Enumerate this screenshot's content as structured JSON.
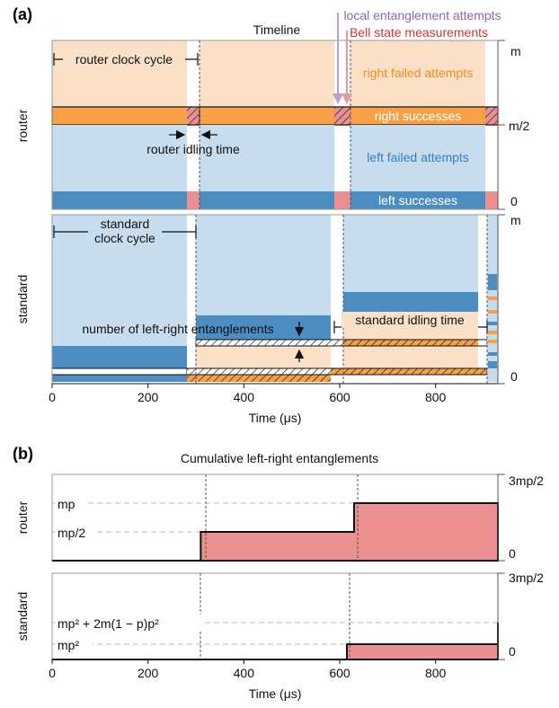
{
  "colors": {
    "peach": "#FBE0C8",
    "orange": "#F7A045",
    "lightblue": "#C7DCEC",
    "blue": "#4C8DC2",
    "pink": "#EA9091",
    "purple": "#8E64B2",
    "red": "#D6333C",
    "label_orange": "#F38B1E",
    "label_blue": "#3A7EBB"
  },
  "panel_a": {
    "tag": "(a)",
    "title": "Timeline",
    "row_router": "router",
    "row_standard": "standard",
    "arrow_local": "local entanglement attempts",
    "arrow_bell": "Bell state measurements",
    "router_clock": "router clock cycle",
    "router_idle": "router idling time",
    "right_failed": "right failed attempts",
    "right_successes": "right successes",
    "left_failed": "left failed attempts",
    "left_successes": "left successes",
    "standard_clock_1": "standard",
    "standard_clock_2": "clock cycle",
    "num_lr": "number of left-right entanglements",
    "standard_idle": "standard idling time",
    "router_axis": [
      "m",
      "m/2",
      "0"
    ],
    "standard_axis": [
      "m",
      "0"
    ],
    "x_ticks": [
      "0",
      "200",
      "400",
      "600",
      "800"
    ],
    "x_label": "Time (μs)"
  },
  "panel_b": {
    "tag": "(b)",
    "title": "Cumulative left-right entanglements",
    "row_router": "router",
    "row_standard": "standard",
    "router_axis_top": "3mp/2",
    "router_axis_zero": "0",
    "standard_axis_top": "3mp/2",
    "standard_axis_zero": "0",
    "router_levels": [
      "mp",
      "mp/2"
    ],
    "standard_levels": [
      "mp² + 2m(1 − p)p²",
      "mp²"
    ],
    "x_ticks": [
      "0",
      "200",
      "400",
      "600",
      "800"
    ],
    "x_label": "Time (μs)"
  },
  "chart_data": {
    "type": "area",
    "title": "Cumulative left-right entanglements",
    "xlabel": "Time (μs)",
    "xlim": [
      0,
      930
    ],
    "series": [
      {
        "name": "router",
        "x": [
          0,
          310,
          310,
          630,
          630,
          930
        ],
        "y_label": [
          "0",
          "0",
          "mp/2",
          "mp/2",
          "mp",
          "mp"
        ]
      },
      {
        "name": "standard",
        "x": [
          0,
          615,
          615,
          930,
          930
        ],
        "y_label": [
          "0",
          "0",
          "mp²",
          "mp²",
          "mp² + 2m(1 − p)p²"
        ]
      }
    ]
  }
}
